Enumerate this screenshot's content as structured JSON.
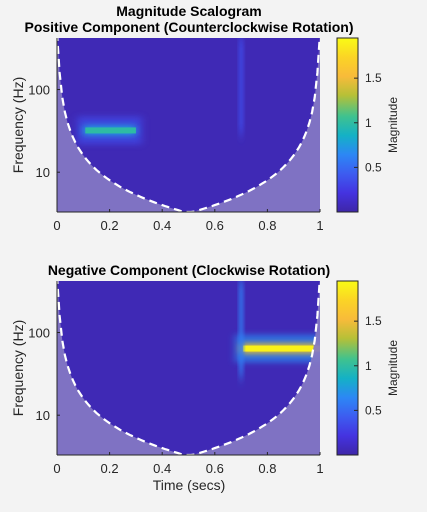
{
  "figure": {
    "title": "Magnitude Scalogram"
  },
  "chart_data": [
    {
      "type": "heatmap",
      "title": "Positive Component (Counterclockwise Rotation)",
      "xlabel": "",
      "ylabel": "Frequency (Hz)",
      "xlim": [
        0,
        1
      ],
      "ylim": [
        3.3,
        420
      ],
      "yscale": "log",
      "xticks": [
        0,
        0.2,
        0.4,
        0.6,
        0.8,
        1
      ],
      "xtick_labels": [
        "0",
        "0.2",
        "0.4",
        "0.6",
        "0.8",
        "1"
      ],
      "yticks": [
        10,
        100
      ],
      "ytick_labels": [
        "10",
        "100"
      ],
      "colorbar": {
        "label": "Magnitude",
        "range": [
          0,
          1.95
        ],
        "ticks": [
          0.5,
          1,
          1.5
        ],
        "tick_labels": [
          "0.5",
          "1",
          "1.5"
        ]
      },
      "features": [
        {
          "kind": "tone",
          "t_start": 0.1,
          "t_end": 0.3,
          "frequency": 32,
          "magnitude": 1.0
        },
        {
          "kind": "transient",
          "t": 0.7,
          "magnitude": 0.35
        }
      ],
      "cone_of_influence": "dashed white, minimum near t = 0.5"
    },
    {
      "type": "heatmap",
      "title": "Negative Component (Clockwise Rotation)",
      "xlabel": "Time (secs)",
      "ylabel": "Frequency (Hz)",
      "xlim": [
        0,
        1
      ],
      "ylim": [
        3.3,
        420
      ],
      "yscale": "log",
      "xticks": [
        0,
        0.2,
        0.4,
        0.6,
        0.8,
        1
      ],
      "xtick_labels": [
        "0",
        "0.2",
        "0.4",
        "0.6",
        "0.8",
        "1"
      ],
      "yticks": [
        10,
        100
      ],
      "ytick_labels": [
        "10",
        "100"
      ],
      "colorbar": {
        "label": "Magnitude",
        "range": [
          0,
          1.95
        ],
        "ticks": [
          0.5,
          1,
          1.5
        ],
        "tick_labels": [
          "0.5",
          "1",
          "1.5"
        ]
      },
      "features": [
        {
          "kind": "tone",
          "t_start": 0.7,
          "t_end": 1.0,
          "frequency": 64,
          "magnitude": 1.9
        },
        {
          "kind": "transient",
          "t": 0.7,
          "magnitude": 0.6
        }
      ],
      "cone_of_influence": "dashed white, minimum near t = 0.5"
    }
  ],
  "colors": {
    "background": "#f3f3f3",
    "colormap": [
      "#3e26a8",
      "#4433e0",
      "#3d5cf0",
      "#2c87f5",
      "#14b1c6",
      "#3fc28f",
      "#b6c037",
      "#f8bb3a",
      "#fbd425",
      "#f9fb15"
    ],
    "coi_shade": "#8478c4",
    "coi_line": "#ffffff"
  }
}
